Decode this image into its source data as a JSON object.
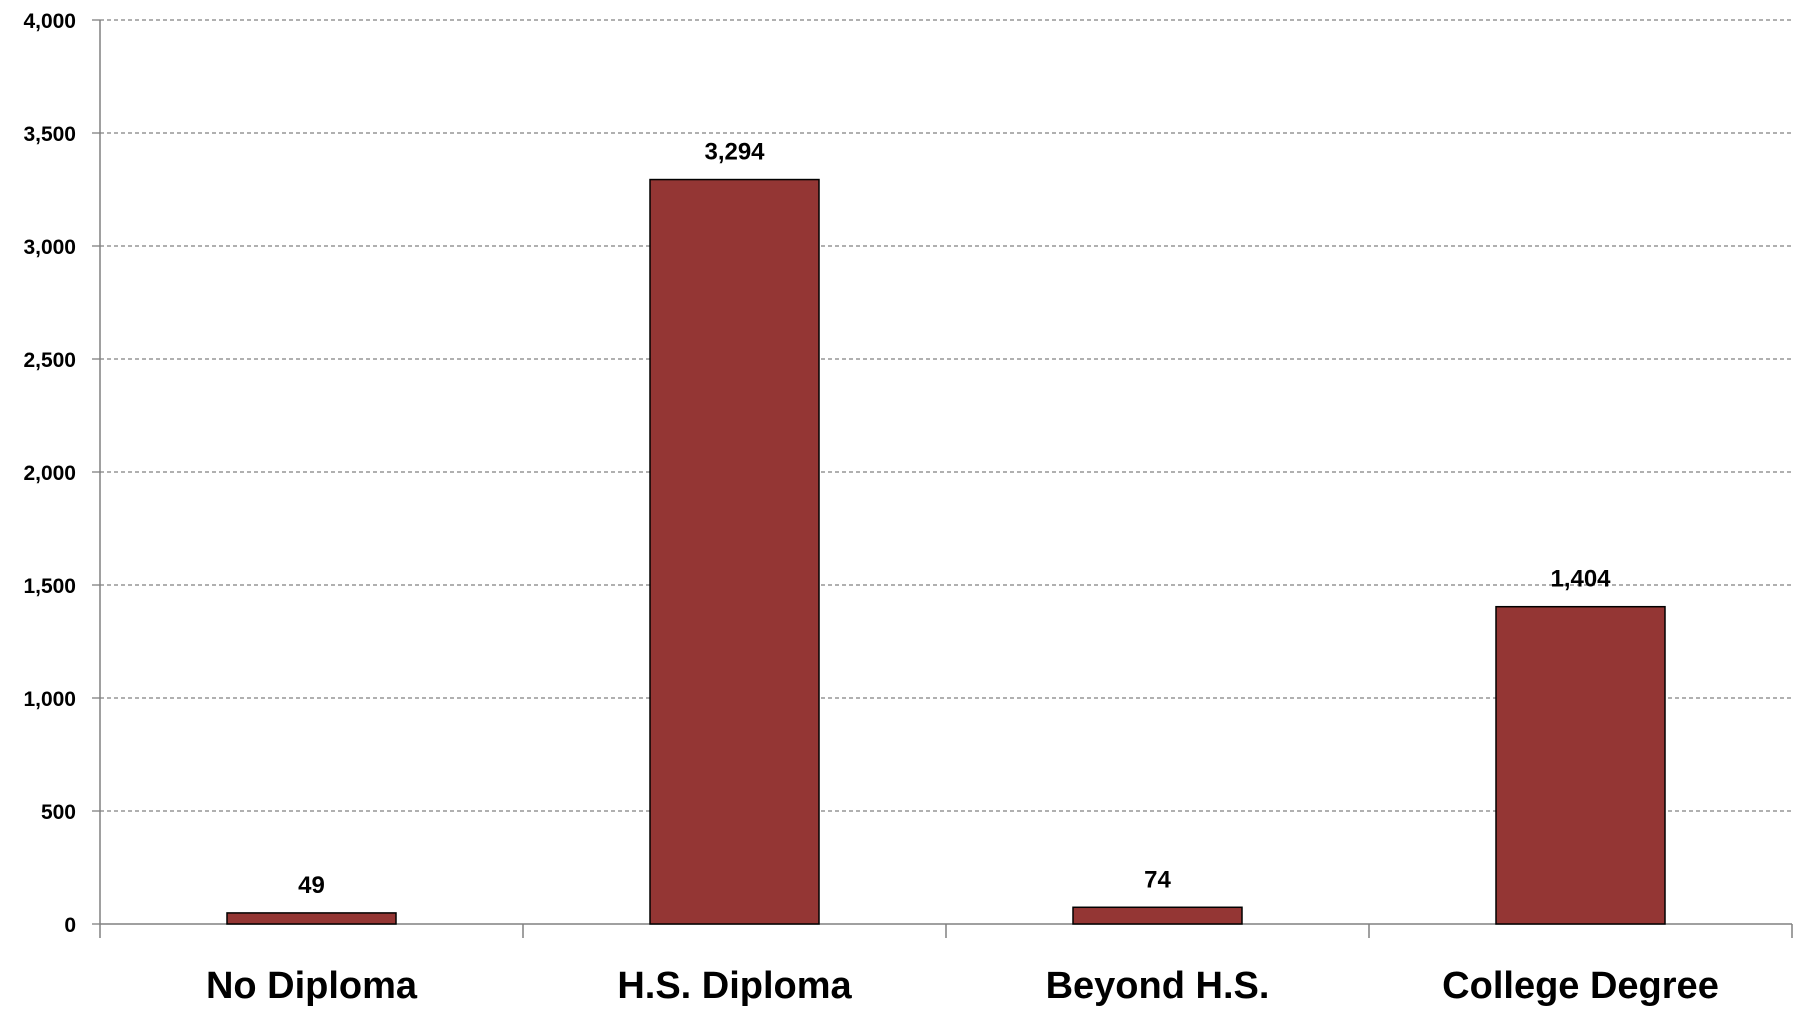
{
  "chart_data": {
    "type": "bar",
    "categories": [
      "No Diploma",
      "H.S. Diploma",
      "Beyond H.S.",
      "College Degree"
    ],
    "values": [
      49,
      3294,
      74,
      1404
    ],
    "data_labels": [
      "49",
      "3,294",
      "74",
      "1,404"
    ],
    "title": "",
    "xlabel": "",
    "ylabel": "",
    "ylim": [
      0,
      4000
    ],
    "yticks": [
      0,
      500,
      1000,
      1500,
      2000,
      2500,
      3000,
      3500,
      4000
    ],
    "ytick_labels": [
      "0",
      "500",
      "1,000",
      "1,500",
      "2,000",
      "2,500",
      "3,000",
      "3,500",
      "4,000"
    ],
    "grid": true,
    "legend": "none",
    "bar_color": "#943634",
    "bar_edge_color": "#000000"
  }
}
